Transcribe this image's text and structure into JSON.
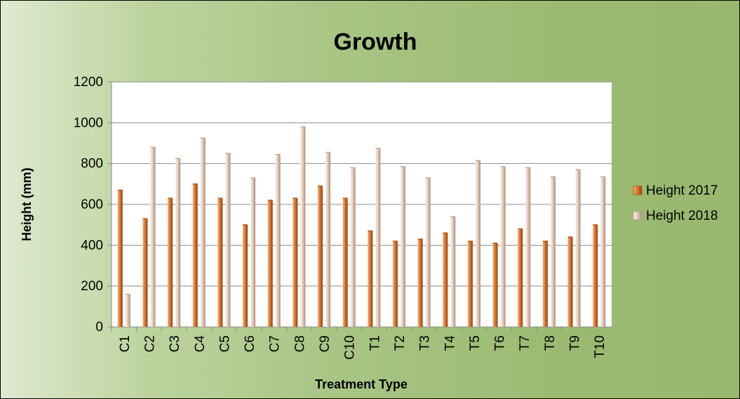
{
  "chart_data": {
    "type": "bar",
    "title": "Growth",
    "xlabel": "Treatment Type",
    "ylabel": "Height (mm)",
    "ylim": [
      0,
      1200
    ],
    "yticks": [
      0,
      200,
      400,
      600,
      800,
      1000,
      1200
    ],
    "grid": true,
    "legend_position": "right",
    "categories": [
      "C1",
      "C2",
      "C3",
      "C4",
      "C5",
      "C6",
      "C7",
      "C8",
      "C9",
      "C10",
      "T1",
      "T2",
      "T3",
      "T4",
      "T5",
      "T6",
      "T7",
      "T8",
      "T9",
      "T10"
    ],
    "series": [
      {
        "name": "Height 2017",
        "color": "#d9712a",
        "values": [
          670,
          530,
          630,
          700,
          630,
          500,
          620,
          630,
          690,
          630,
          470,
          420,
          430,
          460,
          420,
          410,
          480,
          420,
          440,
          500
        ]
      },
      {
        "name": "Height 2018",
        "color": "#e3c9b8",
        "values": [
          160,
          880,
          825,
          925,
          850,
          730,
          845,
          980,
          855,
          780,
          875,
          785,
          730,
          540,
          815,
          785,
          780,
          735,
          770,
          735
        ]
      }
    ]
  }
}
